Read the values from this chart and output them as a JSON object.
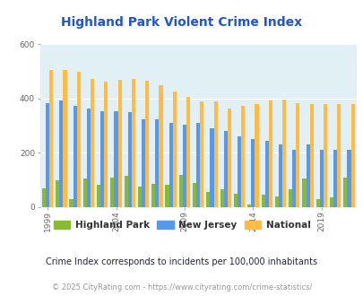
{
  "title": "Highland Park Violent Crime Index",
  "title_color": "#2255cc",
  "years": [
    1999,
    2000,
    2001,
    2002,
    2003,
    2004,
    2005,
    2006,
    2007,
    2008,
    2009,
    2010,
    2011,
    2012,
    2013,
    2014,
    2015,
    2016,
    2017,
    2018,
    2019,
    2020,
    2021
  ],
  "highland_park": [
    70,
    100,
    30,
    105,
    83,
    110,
    115,
    75,
    85,
    83,
    120,
    90,
    57,
    65,
    50,
    10,
    45,
    40,
    65,
    107,
    30,
    35,
    110
  ],
  "new_jersey": [
    385,
    395,
    375,
    365,
    355,
    355,
    350,
    325,
    325,
    310,
    305,
    310,
    290,
    280,
    262,
    250,
    243,
    230,
    210,
    230,
    210,
    210,
    210
  ],
  "national": [
    507,
    507,
    500,
    473,
    463,
    470,
    473,
    466,
    450,
    428,
    405,
    390,
    390,
    365,
    375,
    380,
    395,
    397,
    385,
    380,
    380,
    380,
    380
  ],
  "bar_width": 0.27,
  "ylim": [
    0,
    600
  ],
  "yticks": [
    0,
    200,
    400,
    600
  ],
  "bg_color": "#e0f0f4",
  "hp_color": "#88bb33",
  "nj_color": "#5599ee",
  "nat_color": "#ffbb44",
  "subtitle": "Crime Index corresponds to incidents per 100,000 inhabitants",
  "footer": "© 2025 CityRating.com - https://www.cityrating.com/crime-statistics/",
  "xtick_years": [
    1999,
    2004,
    2009,
    2014,
    2019
  ]
}
